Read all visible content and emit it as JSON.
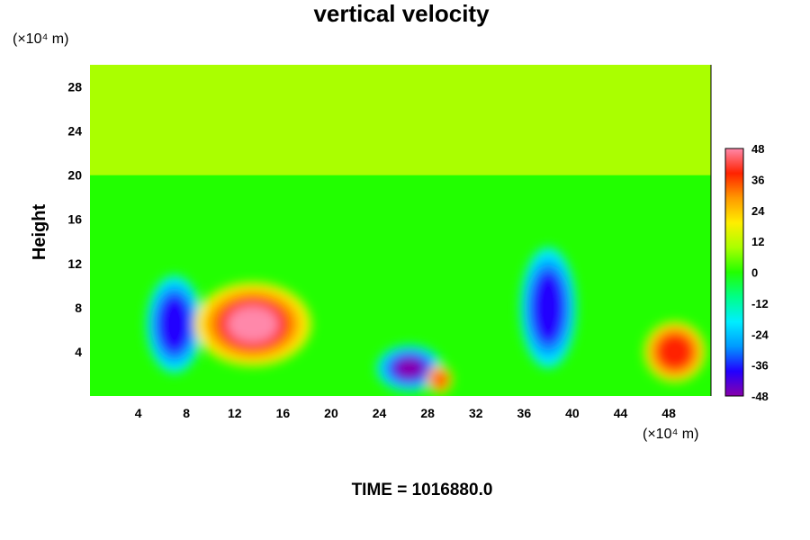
{
  "chart_data": {
    "type": "heatmap",
    "title": "vertical velocity",
    "ylabel": "Height",
    "x_unit": "(×10⁴ m)",
    "y_unit": "(×10⁴ m)",
    "xlim": [
      0,
      51.5
    ],
    "ylim": [
      0,
      30
    ],
    "x_ticks": [
      4,
      8,
      12,
      16,
      20,
      24,
      28,
      32,
      36,
      40,
      44,
      48
    ],
    "y_ticks": [
      4,
      8,
      12,
      16,
      20,
      24,
      28
    ],
    "colorbar": {
      "range": [
        -48,
        48
      ],
      "ticks": [
        48,
        36,
        24,
        12,
        0,
        -12,
        -24,
        -36,
        -48
      ],
      "colors_low_to_high": [
        "#8800aa",
        "#2200ff",
        "#0099ff",
        "#00eeff",
        "#00ff88",
        "#22ff00",
        "#aaff00",
        "#ffee00",
        "#ff9900",
        "#ff2200",
        "#ff88aa"
      ]
    },
    "features": [
      {
        "x": 7.0,
        "y": 6.5,
        "value": -42
      },
      {
        "x": 13.5,
        "y": 6.5,
        "value": 46
      },
      {
        "x": 26.5,
        "y": 2.5,
        "value": -46
      },
      {
        "x": 29.0,
        "y": 1.5,
        "value": 36
      },
      {
        "x": 38.0,
        "y": 8.0,
        "value": -42
      },
      {
        "x": 48.5,
        "y": 4.0,
        "value": 42
      }
    ],
    "time_label": "TIME = 1016880.0"
  }
}
